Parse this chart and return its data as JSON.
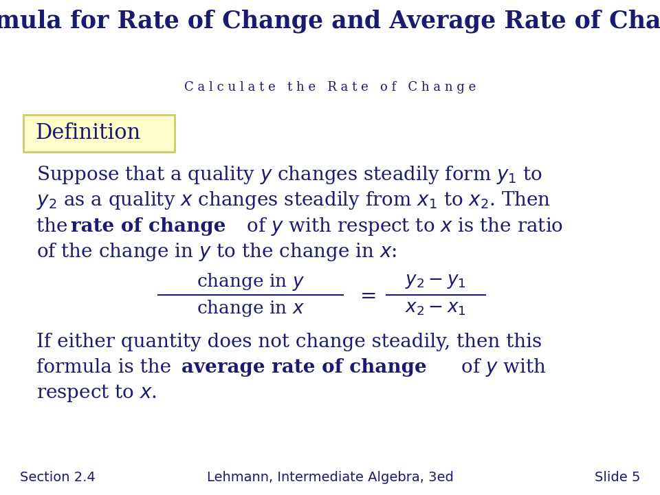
{
  "title": "Formula for Rate of Change and Average Rate of Change",
  "subtitle": "C a l c u l a t e   t h e   R a t e   o f   C h a n g e",
  "header_bg": "#7b8fd4",
  "subheader_bg": "#9baada",
  "footer_bg": "#9baada",
  "main_bg": "#ffffff",
  "title_color": "#1a1a6e",
  "subtitle_color": "#1a1a6e",
  "body_color": "#1a1a6e",
  "footer_color": "#1a1a6e",
  "definition_box_bg": "#ffffcc",
  "definition_box_border": "#cccc66",
  "footer_left": "Section 2.4",
  "footer_center": "Lehmann, Intermediate Algebra, 3ed",
  "footer_right": "Slide 5"
}
